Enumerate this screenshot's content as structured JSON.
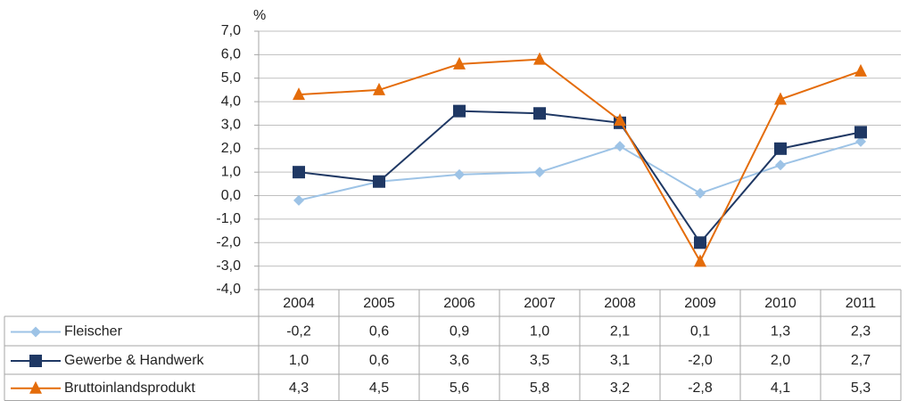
{
  "chart_data": {
    "type": "line",
    "ylabel": "%",
    "categories": [
      "2004",
      "2005",
      "2006",
      "2007",
      "2008",
      "2009",
      "2010",
      "2011"
    ],
    "ylim": [
      -4,
      7
    ],
    "yticks": [
      {
        "value": -4,
        "label": "-4,0"
      },
      {
        "value": -3,
        "label": "-3,0"
      },
      {
        "value": -2,
        "label": "-2,0"
      },
      {
        "value": -1,
        "label": "-1,0"
      },
      {
        "value": 0,
        "label": "0,0"
      },
      {
        "value": 1,
        "label": "1,0"
      },
      {
        "value": 2,
        "label": "2,0"
      },
      {
        "value": 3,
        "label": "3,0"
      },
      {
        "value": 4,
        "label": "4,0"
      },
      {
        "value": 5,
        "label": "5,0"
      },
      {
        "value": 6,
        "label": "6,0"
      },
      {
        "value": 7,
        "label": "7,0"
      }
    ],
    "grid": true,
    "series": [
      {
        "name": "Fleischer",
        "color": "#9dc3e6",
        "marker": "diamond",
        "values": [
          -0.2,
          0.6,
          0.9,
          1.0,
          2.1,
          0.1,
          1.3,
          2.3
        ],
        "value_labels": [
          "-0,2",
          "0,6",
          "0,9",
          "1,0",
          "2,1",
          "0,1",
          "1,3",
          "2,3"
        ]
      },
      {
        "name": "Gewerbe & Handwerk",
        "color": "#1f3864",
        "marker": "square",
        "values": [
          1.0,
          0.6,
          3.6,
          3.5,
          3.1,
          -2.0,
          2.0,
          2.7
        ],
        "value_labels": [
          "1,0",
          "0,6",
          "3,6",
          "3,5",
          "3,1",
          "-2,0",
          "2,0",
          "2,7"
        ]
      },
      {
        "name": "Bruttoinlandsprodukt",
        "color": "#e46c0a",
        "marker": "triangle",
        "values": [
          4.3,
          4.5,
          5.6,
          5.8,
          3.2,
          -2.8,
          4.1,
          5.3
        ],
        "value_labels": [
          "4,3",
          "4,5",
          "5,6",
          "5,8",
          "3,2",
          "-2,8",
          "4,1",
          "5,3"
        ]
      }
    ]
  }
}
